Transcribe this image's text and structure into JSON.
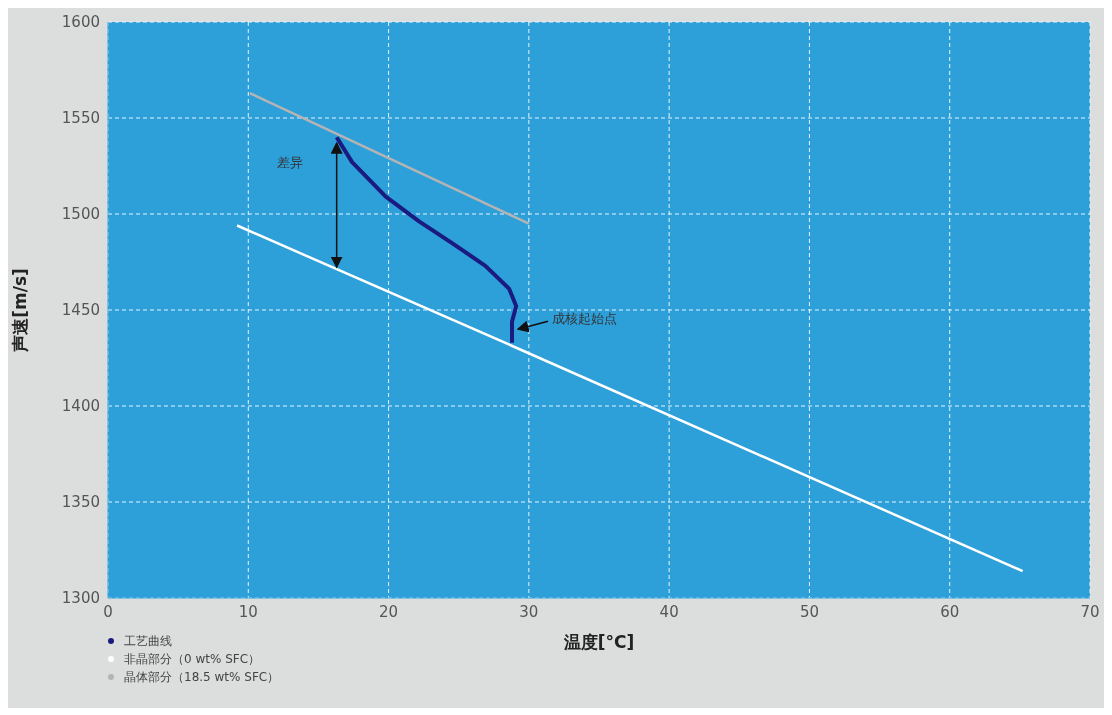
{
  "chart_data": {
    "type": "line",
    "xlabel": "温度[°C]",
    "ylabel": "声速[m/s]",
    "xlim": [
      0,
      70
    ],
    "xticks": [
      0,
      10,
      20,
      30,
      40,
      50,
      60,
      70
    ],
    "ylim": [
      1300,
      1600
    ],
    "yticks": [
      1300,
      1350,
      1400,
      1450,
      1500,
      1550,
      1600
    ],
    "grid": true,
    "legend": "bottom left",
    "marker": "none",
    "annotations": [
      "差异",
      {
        "text": "成核起始点",
        "x": 28.8,
        "y": 1440
      }
    ],
    "series": [
      {
        "name": "工艺曲线",
        "color": "#1a1a80",
        "x": [
          28.8,
          28.8,
          29.1,
          28.6,
          26.9,
          24.5,
          22.2,
          19.8,
          17.4,
          16.3
        ],
        "values": [
          1433,
          1444,
          1452,
          1461,
          1473,
          1485,
          1496,
          1509,
          1527,
          1540
        ]
      },
      {
        "name": "非晶部分（0 wt% SFC）",
        "color": "#ffffff",
        "x": [
          9.2,
          28.9,
          65.2
        ],
        "values": [
          1494,
          1431,
          1314
        ]
      },
      {
        "name": "晶体部分（18.5 wt% SFC）",
        "color": "#b4b4b4",
        "x": [
          10.1,
          30.0
        ],
        "values": [
          1563,
          1495
        ]
      }
    ]
  }
}
